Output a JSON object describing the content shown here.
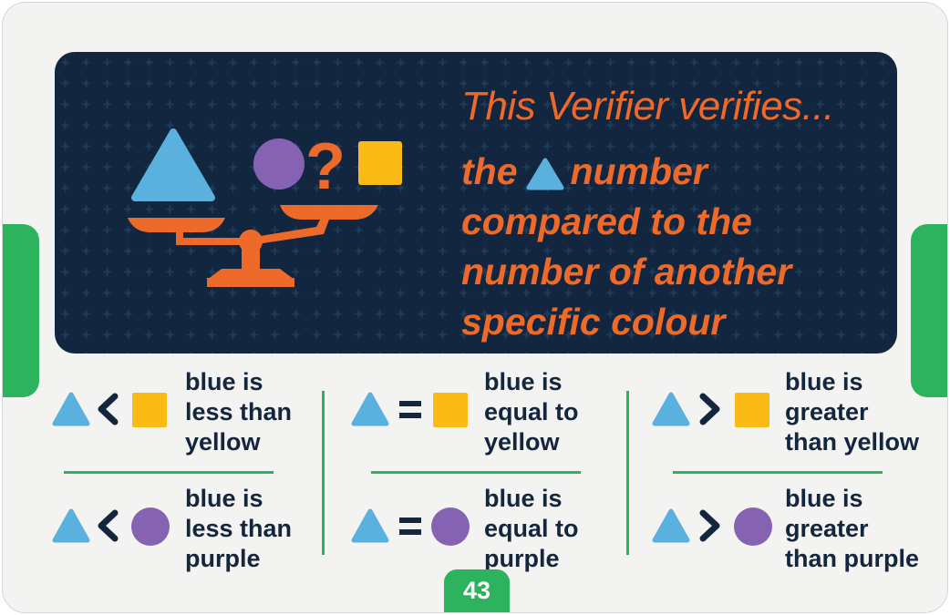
{
  "heading": {
    "title": "This Verifier verifies...",
    "line1_before": "the",
    "line1_after": "number",
    "line2": "compared to the",
    "line3": "number of another",
    "line4": "specific colour"
  },
  "colors": {
    "banner": "#12263f",
    "orange": "#ee6a2a",
    "blue": "#5ab1dd",
    "purple": "#8662b3",
    "yellow": "#fbbb17",
    "green": "#2db35d",
    "navy": "#13263d"
  },
  "comparisons": [
    {
      "symbol": "less-than",
      "top": [
        "blue is",
        "less than",
        "yellow"
      ],
      "bottom": [
        "blue is",
        "less than",
        "purple"
      ]
    },
    {
      "symbol": "equals",
      "top": [
        "blue is",
        "equal to",
        "yellow"
      ],
      "bottom": [
        "blue is",
        "equal to",
        "purple"
      ]
    },
    {
      "symbol": "greater-than",
      "top": [
        "blue is",
        "greater",
        "than yellow"
      ],
      "bottom": [
        "blue is",
        "greater",
        "than purple"
      ]
    }
  ],
  "page_number": "43"
}
